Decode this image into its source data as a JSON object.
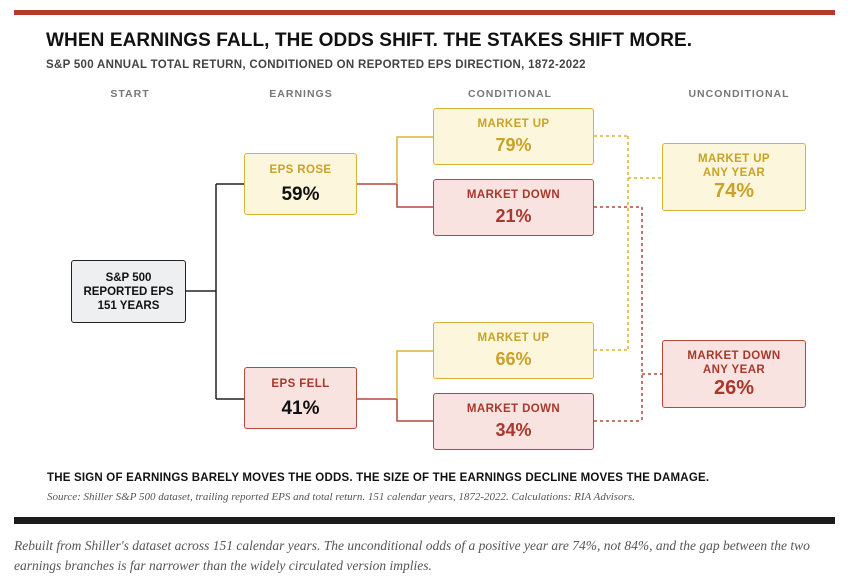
{
  "title": "WHEN EARNINGS FALL, THE ODDS SHIFT. THE STAKES SHIFT MORE.",
  "subtitle": "S&P 500 ANNUAL TOTAL RETURN, CONDITIONED ON REPORTED EPS DIRECTION, 1872-2022",
  "column_headers": {
    "start": "START",
    "earnings": "EARNINGS",
    "conditional": "CONDITIONAL",
    "unconditional": "UNCONDITIONAL"
  },
  "start_node": {
    "line1": "S&P 500",
    "line2": "REPORTED EPS",
    "line3": "151 YEARS"
  },
  "eps_rose": {
    "label": "EPS ROSE",
    "value": "59%",
    "market_up": {
      "label": "MARKET UP",
      "value": "79%"
    },
    "market_down": {
      "label": "MARKET DOWN",
      "value": "21%"
    }
  },
  "eps_fell": {
    "label": "EPS FELL",
    "value": "41%",
    "market_up": {
      "label": "MARKET UP",
      "value": "66%"
    },
    "market_down": {
      "label": "MARKET DOWN",
      "value": "34%"
    }
  },
  "unconditional_up": {
    "line1": "MARKET UP",
    "line2": "ANY YEAR",
    "value": "74%"
  },
  "unconditional_down": {
    "line1": "MARKET DOWN",
    "line2": "ANY YEAR",
    "value": "26%"
  },
  "takeaway": "THE SIGN OF EARNINGS BARELY MOVES THE ODDS. THE SIZE OF THE EARNINGS DECLINE MOVES THE DAMAGE.",
  "source": "Source: Shiller S&P 500 dataset, trailing reported EPS and total return. 151 calendar years, 1872-2022. Calculations: RIA Advisors.",
  "caption": "Rebuilt from Shiller's dataset across 151 calendar years. The unconditional odds of a positive year are 74%, not 84%, and the gap between the two earnings branches is far narrower than the widely circulated version implies.",
  "colors": {
    "accent_red": "#b23b2c",
    "yellow_border": "#d8b436",
    "yellow_text": "#c9a227",
    "red_border": "#b8473a",
    "red_text": "#a8382c"
  }
}
